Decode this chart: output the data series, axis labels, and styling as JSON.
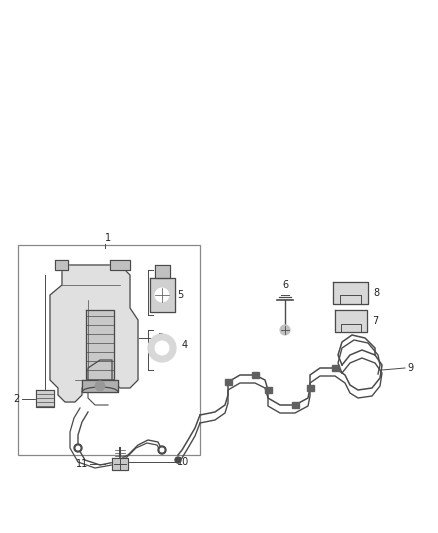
{
  "bg_color": "#ffffff",
  "line_color": "#4a4a4a",
  "label_color": "#222222",
  "fig_width": 4.38,
  "fig_height": 5.33,
  "dpi": 100
}
